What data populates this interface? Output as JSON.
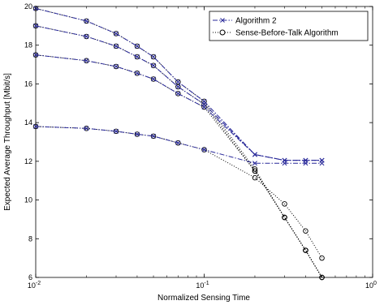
{
  "chart_data": {
    "type": "line",
    "xscale": "log",
    "xlim": [
      0.01,
      1
    ],
    "ylim": [
      6,
      20
    ],
    "xlabel": "Normalized Sensing Time",
    "ylabel": "Expected Average Throughput [Mbit/s]",
    "x_ticks": [
      {
        "value": 0.01,
        "base": "10",
        "exp": "-2"
      },
      {
        "value": 0.1,
        "base": "10",
        "exp": "-1"
      },
      {
        "value": 1,
        "base": "10",
        "exp": "0"
      }
    ],
    "y_ticks": [
      {
        "value": 6,
        "label": "6"
      },
      {
        "value": 8,
        "label": "8"
      },
      {
        "value": 10,
        "label": "10"
      },
      {
        "value": 12,
        "label": "12"
      },
      {
        "value": 14,
        "label": "14"
      },
      {
        "value": 16,
        "label": "16"
      },
      {
        "value": 18,
        "label": "18"
      },
      {
        "value": 20,
        "label": "20"
      }
    ],
    "grid": false,
    "legend_position": "top-right",
    "colors": {
      "algorithm2": "#2a2a9a",
      "sbt": "#000000"
    },
    "legend": [
      {
        "label": "Algorithm 2",
        "marker": "x",
        "style": "dashdot",
        "color": "#2a2a9a"
      },
      {
        "label": "Sense-Before-Talk Algorithm",
        "marker": "o",
        "style": "dotted",
        "color": "#000000"
      }
    ],
    "x": [
      0.01,
      0.02,
      0.03,
      0.04,
      0.05,
      0.07,
      0.1,
      0.2,
      0.3,
      0.4,
      0.5
    ],
    "series": [
      {
        "group": "Algorithm 2",
        "values": [
          19.9,
          19.25,
          18.6,
          17.95,
          17.4,
          16.1,
          15.1,
          12.35,
          12.05,
          12.05,
          12.05
        ]
      },
      {
        "group": "Algorithm 2",
        "values": [
          19.0,
          18.45,
          17.95,
          17.4,
          16.95,
          15.85,
          14.95,
          12.35,
          12.05,
          12.05,
          12.05
        ]
      },
      {
        "group": "Algorithm 2",
        "values": [
          17.5,
          17.2,
          16.9,
          16.55,
          16.25,
          15.5,
          14.8,
          12.35,
          12.05,
          12.05,
          12.05
        ]
      },
      {
        "group": "Algorithm 2",
        "values": [
          13.8,
          13.7,
          13.55,
          13.4,
          13.3,
          12.95,
          12.6,
          11.9,
          11.9,
          11.9,
          11.9
        ]
      },
      {
        "group": "Sense-Before-Talk Algorithm",
        "values": [
          19.9,
          19.25,
          18.6,
          17.95,
          17.4,
          16.1,
          15.1,
          11.6,
          9.1,
          7.4,
          6.0
        ]
      },
      {
        "group": "Sense-Before-Talk Algorithm",
        "values": [
          19.0,
          18.45,
          17.95,
          17.4,
          16.95,
          15.85,
          14.95,
          11.5,
          9.1,
          7.4,
          6.0
        ]
      },
      {
        "group": "Sense-Before-Talk Algorithm",
        "values": [
          17.5,
          17.2,
          16.9,
          16.55,
          16.25,
          15.5,
          14.8,
          11.5,
          9.1,
          7.4,
          6.0
        ]
      },
      {
        "group": "Sense-Before-Talk Algorithm",
        "values": [
          13.8,
          13.7,
          13.55,
          13.4,
          13.3,
          12.95,
          12.6,
          11.15,
          9.8,
          8.4,
          7.0
        ]
      }
    ]
  }
}
